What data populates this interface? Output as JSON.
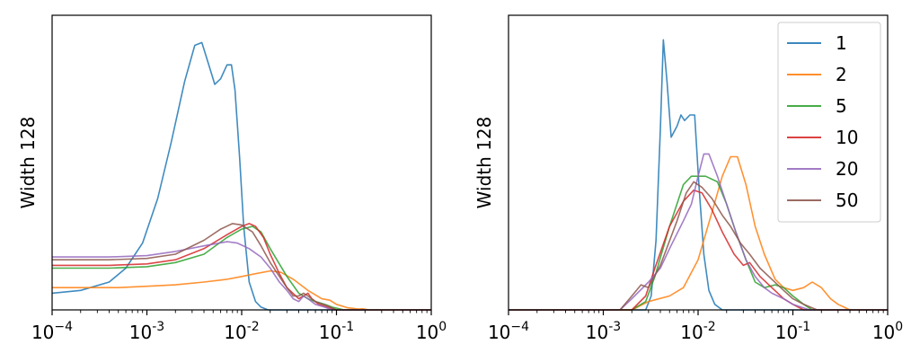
{
  "chart_data": [
    {
      "type": "line",
      "ylabel": "Width 128",
      "xscale": "log",
      "xlim": [
        0.0001,
        1
      ],
      "ylim": [
        0,
        1
      ],
      "yticks": "none",
      "legend": null,
      "xtick_labels": [
        {
          "base": "10",
          "exp": "−4"
        },
        {
          "base": "10",
          "exp": "-3"
        },
        {
          "base": "10",
          "exp": "-2"
        },
        {
          "base": "10",
          "exp": "-1"
        },
        {
          "base": "10",
          "exp": "0"
        }
      ],
      "series": [
        {
          "name": "1",
          "color": "#1f77b4",
          "points": [
            [
              0.0001,
              0.06
            ],
            [
              0.0002,
              0.07
            ],
            [
              0.0004,
              0.1
            ],
            [
              0.0006,
              0.15
            ],
            [
              0.0009,
              0.24
            ],
            [
              0.0013,
              0.4
            ],
            [
              0.0018,
              0.6
            ],
            [
              0.0025,
              0.82
            ],
            [
              0.0032,
              0.95
            ],
            [
              0.0038,
              0.96
            ],
            [
              0.0045,
              0.88
            ],
            [
              0.0052,
              0.81
            ],
            [
              0.006,
              0.83
            ],
            [
              0.007,
              0.88
            ],
            [
              0.0078,
              0.88
            ],
            [
              0.0085,
              0.79
            ],
            [
              0.0095,
              0.55
            ],
            [
              0.0105,
              0.3
            ],
            [
              0.012,
              0.1
            ],
            [
              0.014,
              0.03
            ],
            [
              0.016,
              0.01
            ],
            [
              0.019,
              0.0
            ],
            [
              0.03,
              0.0
            ],
            [
              1,
              0.0
            ]
          ]
        },
        {
          "name": "2",
          "color": "#ff7f0e",
          "points": [
            [
              0.0001,
              0.08
            ],
            [
              0.0005,
              0.08
            ],
            [
              0.001,
              0.085
            ],
            [
              0.002,
              0.09
            ],
            [
              0.004,
              0.1
            ],
            [
              0.007,
              0.11
            ],
            [
              0.01,
              0.12
            ],
            [
              0.014,
              0.13
            ],
            [
              0.02,
              0.14
            ],
            [
              0.026,
              0.135
            ],
            [
              0.035,
              0.11
            ],
            [
              0.05,
              0.07
            ],
            [
              0.07,
              0.04
            ],
            [
              0.085,
              0.035
            ],
            [
              0.1,
              0.02
            ],
            [
              0.13,
              0.008
            ],
            [
              0.17,
              0.003
            ],
            [
              0.19,
              0.004
            ],
            [
              0.22,
              0.0
            ],
            [
              1,
              0.0
            ]
          ]
        },
        {
          "name": "5",
          "color": "#2ca02c",
          "points": [
            [
              0.0001,
              0.15
            ],
            [
              0.0004,
              0.15
            ],
            [
              0.001,
              0.155
            ],
            [
              0.002,
              0.17
            ],
            [
              0.004,
              0.2
            ],
            [
              0.007,
              0.26
            ],
            [
              0.01,
              0.29
            ],
            [
              0.013,
              0.3
            ],
            [
              0.016,
              0.28
            ],
            [
              0.02,
              0.22
            ],
            [
              0.03,
              0.12
            ],
            [
              0.04,
              0.06
            ],
            [
              0.05,
              0.04
            ],
            [
              0.06,
              0.03
            ],
            [
              0.075,
              0.02
            ],
            [
              0.09,
              0.01
            ],
            [
              0.12,
              0.0
            ],
            [
              1,
              0.0
            ]
          ]
        },
        {
          "name": "10",
          "color": "#d62728",
          "points": [
            [
              0.0001,
              0.16
            ],
            [
              0.0004,
              0.16
            ],
            [
              0.001,
              0.165
            ],
            [
              0.002,
              0.18
            ],
            [
              0.004,
              0.22
            ],
            [
              0.007,
              0.27
            ],
            [
              0.01,
              0.3
            ],
            [
              0.012,
              0.31
            ],
            [
              0.014,
              0.3
            ],
            [
              0.017,
              0.26
            ],
            [
              0.02,
              0.2
            ],
            [
              0.025,
              0.13
            ],
            [
              0.03,
              0.08
            ],
            [
              0.04,
              0.04
            ],
            [
              0.045,
              0.05
            ],
            [
              0.05,
              0.06
            ],
            [
              0.055,
              0.04
            ],
            [
              0.065,
              0.02
            ],
            [
              0.08,
              0.01
            ],
            [
              0.1,
              0.0
            ],
            [
              1,
              0.0
            ]
          ]
        },
        {
          "name": "20",
          "color": "#9467bd",
          "points": [
            [
              0.0001,
              0.19
            ],
            [
              0.0004,
              0.19
            ],
            [
              0.001,
              0.195
            ],
            [
              0.002,
              0.21
            ],
            [
              0.004,
              0.23
            ],
            [
              0.007,
              0.245
            ],
            [
              0.009,
              0.24
            ],
            [
              0.012,
              0.22
            ],
            [
              0.016,
              0.19
            ],
            [
              0.02,
              0.15
            ],
            [
              0.025,
              0.1
            ],
            [
              0.03,
              0.07
            ],
            [
              0.035,
              0.04
            ],
            [
              0.04,
              0.03
            ],
            [
              0.045,
              0.05
            ],
            [
              0.05,
              0.04
            ],
            [
              0.06,
              0.02
            ],
            [
              0.075,
              0.01
            ],
            [
              0.09,
              0.0
            ],
            [
              1,
              0.0
            ]
          ]
        },
        {
          "name": "50",
          "color": "#8c564b",
          "points": [
            [
              0.0001,
              0.18
            ],
            [
              0.0004,
              0.18
            ],
            [
              0.001,
              0.185
            ],
            [
              0.002,
              0.2
            ],
            [
              0.004,
              0.25
            ],
            [
              0.006,
              0.29
            ],
            [
              0.008,
              0.31
            ],
            [
              0.01,
              0.305
            ],
            [
              0.013,
              0.28
            ],
            [
              0.016,
              0.23
            ],
            [
              0.02,
              0.17
            ],
            [
              0.025,
              0.12
            ],
            [
              0.03,
              0.08
            ],
            [
              0.035,
              0.05
            ],
            [
              0.04,
              0.05
            ],
            [
              0.045,
              0.06
            ],
            [
              0.05,
              0.05
            ],
            [
              0.06,
              0.03
            ],
            [
              0.08,
              0.015
            ],
            [
              0.1,
              0.0
            ],
            [
              1,
              0.0
            ]
          ]
        }
      ]
    },
    {
      "type": "line",
      "ylabel": "Width 128",
      "xscale": "log",
      "xlim": [
        0.0001,
        1
      ],
      "ylim": [
        0,
        1
      ],
      "yticks": "none",
      "legend": {
        "placement": "top-right",
        "entries": [
          "1",
          "2",
          "5",
          "10",
          "20",
          "50"
        ]
      },
      "xtick_labels": [
        {
          "base": "10",
          "exp": "−4"
        },
        {
          "base": "10",
          "exp": "-3"
        },
        {
          "base": "10",
          "exp": "-2"
        },
        {
          "base": "10",
          "exp": "-1"
        },
        {
          "base": "10",
          "exp": "0"
        }
      ],
      "series": [
        {
          "name": "1",
          "color": "#1f77b4",
          "points": [
            [
              0.0001,
              0.0
            ],
            [
              0.0028,
              0.0
            ],
            [
              0.0032,
              0.05
            ],
            [
              0.0036,
              0.25
            ],
            [
              0.004,
              0.65
            ],
            [
              0.0043,
              0.97
            ],
            [
              0.0047,
              0.82
            ],
            [
              0.0052,
              0.62
            ],
            [
              0.006,
              0.66
            ],
            [
              0.0066,
              0.7
            ],
            [
              0.0072,
              0.68
            ],
            [
              0.0082,
              0.7
            ],
            [
              0.0092,
              0.7
            ],
            [
              0.0102,
              0.45
            ],
            [
              0.0115,
              0.2
            ],
            [
              0.013,
              0.07
            ],
            [
              0.015,
              0.02
            ],
            [
              0.018,
              0.0
            ],
            [
              1,
              0.0
            ]
          ]
        },
        {
          "name": "2",
          "color": "#ff7f0e",
          "points": [
            [
              0.0001,
              0.0
            ],
            [
              0.002,
              0.0
            ],
            [
              0.003,
              0.03
            ],
            [
              0.005,
              0.05
            ],
            [
              0.007,
              0.08
            ],
            [
              0.01,
              0.18
            ],
            [
              0.014,
              0.35
            ],
            [
              0.018,
              0.48
            ],
            [
              0.022,
              0.55
            ],
            [
              0.026,
              0.55
            ],
            [
              0.032,
              0.45
            ],
            [
              0.04,
              0.3
            ],
            [
              0.05,
              0.2
            ],
            [
              0.065,
              0.11
            ],
            [
              0.08,
              0.08
            ],
            [
              0.1,
              0.07
            ],
            [
              0.13,
              0.08
            ],
            [
              0.16,
              0.1
            ],
            [
              0.2,
              0.08
            ],
            [
              0.25,
              0.04
            ],
            [
              0.3,
              0.02
            ],
            [
              0.4,
              0.0
            ],
            [
              1,
              0.0
            ]
          ]
        },
        {
          "name": "5",
          "color": "#2ca02c",
          "points": [
            [
              0.0001,
              0.0
            ],
            [
              0.002,
              0.0
            ],
            [
              0.0028,
              0.03
            ],
            [
              0.0035,
              0.12
            ],
            [
              0.005,
              0.3
            ],
            [
              0.007,
              0.45
            ],
            [
              0.0085,
              0.48
            ],
            [
              0.012,
              0.48
            ],
            [
              0.016,
              0.46
            ],
            [
              0.02,
              0.38
            ],
            [
              0.025,
              0.28
            ],
            [
              0.032,
              0.18
            ],
            [
              0.04,
              0.1
            ],
            [
              0.05,
              0.08
            ],
            [
              0.065,
              0.09
            ],
            [
              0.08,
              0.08
            ],
            [
              0.1,
              0.05
            ],
            [
              0.13,
              0.02
            ],
            [
              0.16,
              0.0
            ],
            [
              1,
              0.0
            ]
          ]
        },
        {
          "name": "10",
          "color": "#d62728",
          "points": [
            [
              0.0001,
              0.0
            ],
            [
              0.002,
              0.0
            ],
            [
              0.0028,
              0.05
            ],
            [
              0.0035,
              0.15
            ],
            [
              0.005,
              0.3
            ],
            [
              0.007,
              0.39
            ],
            [
              0.009,
              0.43
            ],
            [
              0.011,
              0.42
            ],
            [
              0.014,
              0.36
            ],
            [
              0.018,
              0.28
            ],
            [
              0.024,
              0.2
            ],
            [
              0.03,
              0.16
            ],
            [
              0.035,
              0.17
            ],
            [
              0.045,
              0.12
            ],
            [
              0.06,
              0.08
            ],
            [
              0.08,
              0.04
            ],
            [
              0.1,
              0.02
            ],
            [
              0.13,
              0.0
            ],
            [
              1,
              0.0
            ]
          ]
        },
        {
          "name": "20",
          "color": "#9467bd",
          "points": [
            [
              0.0001,
              0.0
            ],
            [
              0.0015,
              0.0
            ],
            [
              0.002,
              0.04
            ],
            [
              0.003,
              0.1
            ],
            [
              0.004,
              0.15
            ],
            [
              0.005,
              0.22
            ],
            [
              0.007,
              0.32
            ],
            [
              0.0085,
              0.38
            ],
            [
              0.01,
              0.48
            ],
            [
              0.0115,
              0.56
            ],
            [
              0.013,
              0.56
            ],
            [
              0.016,
              0.48
            ],
            [
              0.02,
              0.38
            ],
            [
              0.025,
              0.28
            ],
            [
              0.032,
              0.18
            ],
            [
              0.04,
              0.12
            ],
            [
              0.05,
              0.08
            ],
            [
              0.06,
              0.06
            ],
            [
              0.08,
              0.04
            ],
            [
              0.1,
              0.02
            ],
            [
              0.15,
              0.0
            ],
            [
              1,
              0.0
            ]
          ]
        },
        {
          "name": "50",
          "color": "#8c564b",
          "points": [
            [
              0.0001,
              0.0
            ],
            [
              0.0015,
              0.0
            ],
            [
              0.002,
              0.05
            ],
            [
              0.0025,
              0.09
            ],
            [
              0.003,
              0.08
            ],
            [
              0.004,
              0.16
            ],
            [
              0.006,
              0.32
            ],
            [
              0.0075,
              0.42
            ],
            [
              0.009,
              0.46
            ],
            [
              0.011,
              0.44
            ],
            [
              0.014,
              0.4
            ],
            [
              0.018,
              0.34
            ],
            [
              0.022,
              0.3
            ],
            [
              0.028,
              0.24
            ],
            [
              0.035,
              0.2
            ],
            [
              0.045,
              0.15
            ],
            [
              0.06,
              0.11
            ],
            [
              0.08,
              0.07
            ],
            [
              0.1,
              0.04
            ],
            [
              0.13,
              0.02
            ],
            [
              0.18,
              0.0
            ],
            [
              1,
              0.0
            ]
          ]
        }
      ]
    }
  ]
}
